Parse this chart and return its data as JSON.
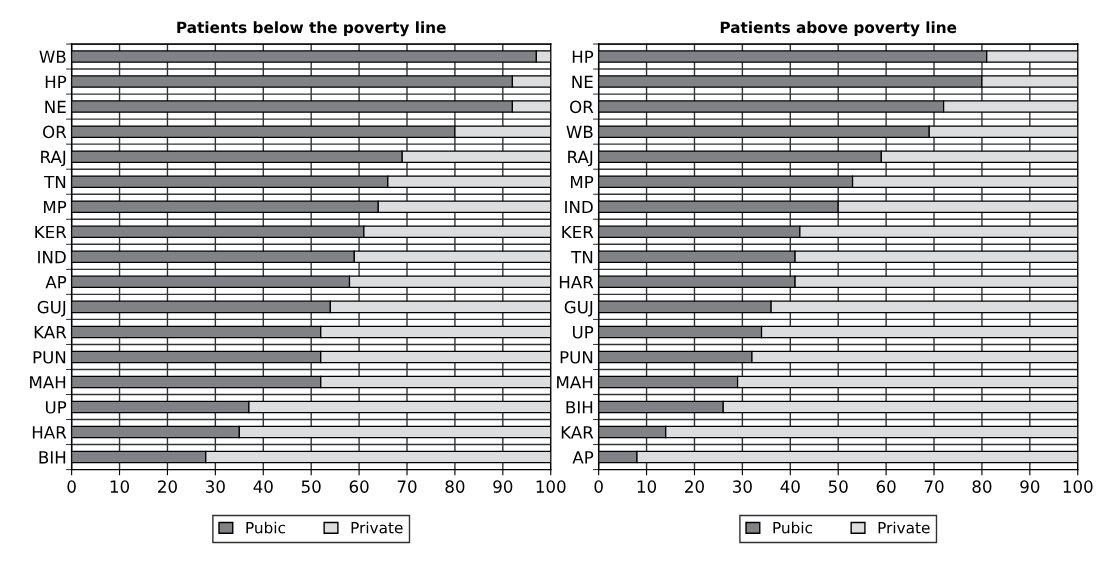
{
  "chart_data": [
    {
      "type": "bar",
      "orientation": "horizontal",
      "stacked": true,
      "title": "Patients below the poverty line",
      "categories": [
        "WB",
        "HP",
        "NE",
        "OR",
        "RAJ",
        "TN",
        "MP",
        "KER",
        "IND",
        "AP",
        "GUJ",
        "KAR",
        "PUN",
        "MAH",
        "UP",
        "HAR",
        "BIH"
      ],
      "series": [
        {
          "name": "Pubic",
          "color": "#808285",
          "values": [
            97,
            92,
            92,
            80,
            69,
            66,
            64,
            61,
            59,
            58,
            54,
            52,
            52,
            52,
            37,
            35,
            28
          ]
        },
        {
          "name": "Private",
          "color": "#dcddde",
          "values": [
            3,
            8,
            8,
            20,
            31,
            34,
            36,
            39,
            41,
            42,
            46,
            48,
            48,
            48,
            63,
            65,
            72
          ]
        }
      ],
      "xlim": [
        0,
        100
      ],
      "xticks": [
        0,
        10,
        20,
        30,
        40,
        50,
        60,
        70,
        80,
        90,
        100
      ],
      "grid": true,
      "legend": "bottom"
    },
    {
      "type": "bar",
      "orientation": "horizontal",
      "stacked": true,
      "title": "Patients above poverty line",
      "categories": [
        "HP",
        "NE",
        "OR",
        "WB",
        "RAJ",
        "MP",
        "IND",
        "KER",
        "TN",
        "HAR",
        "GUJ",
        "UP",
        "PUN",
        "MAH",
        "BIH",
        "KAR",
        "AP"
      ],
      "series": [
        {
          "name": "Pubic",
          "color": "#808285",
          "values": [
            81,
            80,
            72,
            69,
            59,
            53,
            50,
            42,
            41,
            41,
            36,
            34,
            32,
            29,
            26,
            14,
            8
          ]
        },
        {
          "name": "Private",
          "color": "#dcddde",
          "values": [
            19,
            20,
            28,
            31,
            41,
            47,
            50,
            58,
            59,
            59,
            64,
            66,
            68,
            71,
            74,
            86,
            92
          ]
        }
      ],
      "xlim": [
        0,
        100
      ],
      "xticks": [
        0,
        10,
        20,
        30,
        40,
        50,
        60,
        70,
        80,
        90,
        100
      ],
      "grid": true,
      "legend": "bottom"
    }
  ]
}
